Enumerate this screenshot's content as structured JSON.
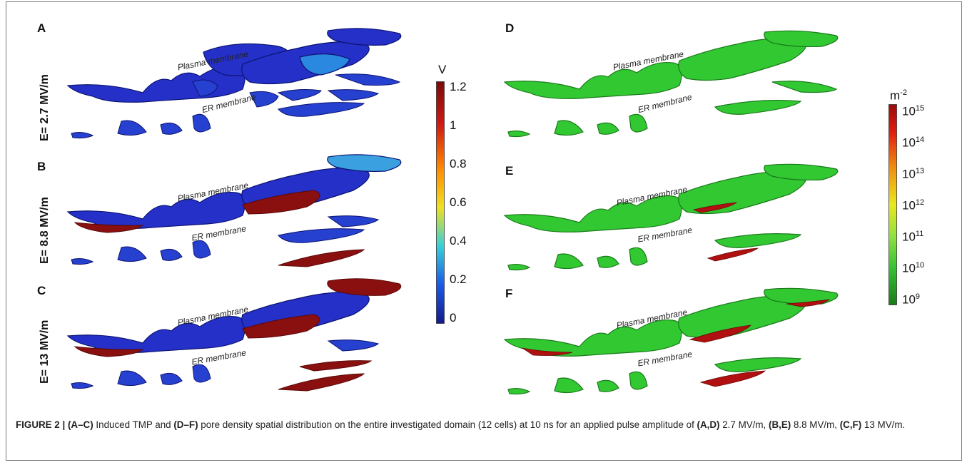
{
  "panels": [
    {
      "letter": "A",
      "field": "E= 2.7 MV/m"
    },
    {
      "letter": "B",
      "field": "E= 8.8 MV/m"
    },
    {
      "letter": "C",
      "field": "E= 13 MV/m"
    },
    {
      "letter": "D"
    },
    {
      "letter": "E"
    },
    {
      "letter": "F"
    }
  ],
  "labels": {
    "plasma": "Plasma membrane",
    "er": "ER membrane"
  },
  "colorbar_tmp": {
    "unit": "V",
    "ticks": [
      "1.2",
      "1",
      "0.8",
      "0.6",
      "0.4",
      "0.2",
      "0"
    ],
    "colors": [
      "#7a0a0a",
      "#d21a12",
      "#ff8a00",
      "#f0e020",
      "#38d0d8",
      "#1a5ae8",
      "#131a8c"
    ]
  },
  "colorbar_pore": {
    "unit_base": "m",
    "unit_exp": "-2",
    "ticks": [
      {
        "base": "10",
        "exp": "15"
      },
      {
        "base": "10",
        "exp": "14"
      },
      {
        "base": "10",
        "exp": "13"
      },
      {
        "base": "10",
        "exp": "12"
      },
      {
        "base": "10",
        "exp": "11"
      },
      {
        "base": "10",
        "exp": "10"
      },
      {
        "base": "10",
        "exp": "9"
      }
    ],
    "colors": [
      "#9a0a0a",
      "#e02010",
      "#f09010",
      "#e8e820",
      "#90e040",
      "#33c033",
      "#1a7a1a"
    ]
  },
  "caption": {
    "fig": "FIGURE 2 |",
    "p1b": "(A–C)",
    "t1": " Induced TMP and ",
    "p2b": "(D–F)",
    "t2": " pore density spatial distribution on the entire investigated domain (12 cells) at 10 ns for an applied pulse amplitude of ",
    "p3b": "(A,D)",
    "t3": " 2.7 MV/m, ",
    "p4b": "(B,E)",
    "t4": " 8.8 MV/m, ",
    "p5b": "(C,F)",
    "t5": " 13 MV/m."
  },
  "colors": {
    "tmp_base": "#2430c8",
    "pore_base": "#32c832",
    "hot_tmp": "#8a1010",
    "hot_pore": "#b01010"
  }
}
